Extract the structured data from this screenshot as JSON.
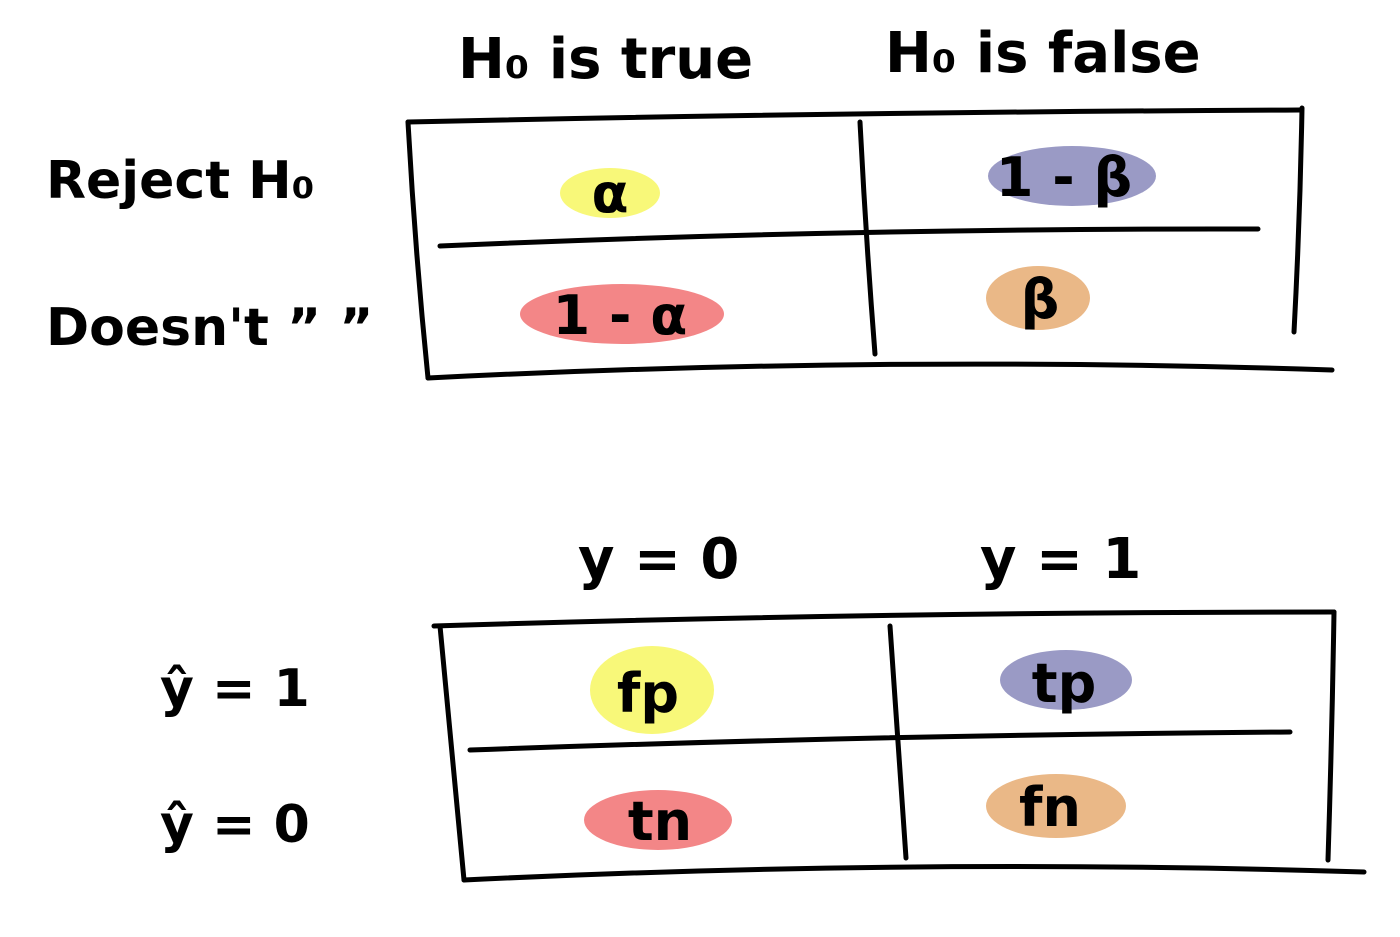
{
  "colors": {
    "yellow_highlight": "#f7f76a",
    "red_highlight": "#f2797a",
    "purple_highlight": "#8f8fbf",
    "orange_highlight": "#e8b07a"
  },
  "hypothesis_table": {
    "columns": [
      "H₀ is true",
      "H₀ is false"
    ],
    "rows": [
      {
        "label": "Reject H₀",
        "cells": [
          "α",
          "1 - β"
        ]
      },
      {
        "label": "Doesn't ” ”",
        "cells": [
          "1 - α",
          "β"
        ]
      }
    ]
  },
  "confusion_table": {
    "columns": [
      "y = 0",
      "y = 1"
    ],
    "rows": [
      {
        "label": "ŷ = 1",
        "cells": [
          "fp",
          "tp"
        ]
      },
      {
        "label": "ŷ = 0",
        "cells": [
          "tn",
          "fn"
        ]
      }
    ]
  }
}
